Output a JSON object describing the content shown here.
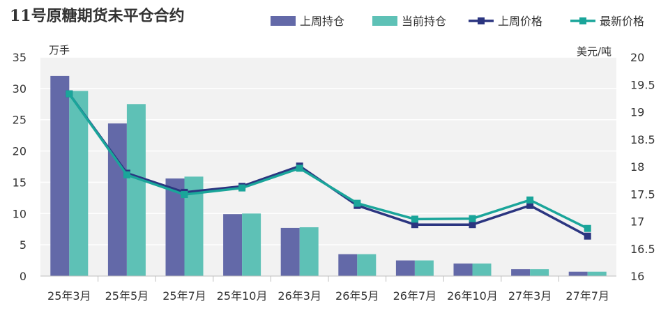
{
  "chart_data": {
    "type": "bar",
    "title": "11号原糖期货未平仓合约",
    "categories": [
      "25年3月",
      "25年5月",
      "25年7月",
      "25年10月",
      "26年3月",
      "26年5月",
      "26年7月",
      "26年10月",
      "27年3月",
      "27年7月"
    ],
    "y_left_unit": "万手",
    "y_right_unit": "美元/吨",
    "ylim_left": [
      0,
      35
    ],
    "ylim_right": [
      16,
      20
    ],
    "yticks_left": [
      "0",
      "5",
      "10",
      "15",
      "20",
      "25",
      "30",
      "35"
    ],
    "yticks_right": [
      "16",
      "16.5",
      "17",
      "17.5",
      "18",
      "18.5",
      "19",
      "19.5",
      "20"
    ],
    "grid": true,
    "legend_position": "top-right",
    "bar_series": [
      {
        "name": "上周持仓",
        "color": "#6369a8",
        "values": [
          32.0,
          24.4,
          15.6,
          9.9,
          7.7,
          3.5,
          2.5,
          2.0,
          1.1,
          0.7
        ]
      },
      {
        "name": "当前持仓",
        "color": "#5ec1b6",
        "values": [
          29.6,
          27.5,
          15.9,
          10.0,
          7.8,
          3.5,
          2.5,
          2.0,
          1.1,
          0.7
        ]
      }
    ],
    "line_series": [
      {
        "name": "上周价格",
        "color": "#2b3580",
        "values": [
          19.33,
          17.88,
          17.53,
          17.64,
          18.01,
          17.29,
          16.94,
          16.94,
          17.29,
          16.73
        ]
      },
      {
        "name": "最新价格",
        "color": "#1aa59a",
        "values": [
          19.33,
          17.85,
          17.49,
          17.61,
          17.97,
          17.33,
          17.04,
          17.05,
          17.39,
          16.87
        ]
      }
    ]
  }
}
